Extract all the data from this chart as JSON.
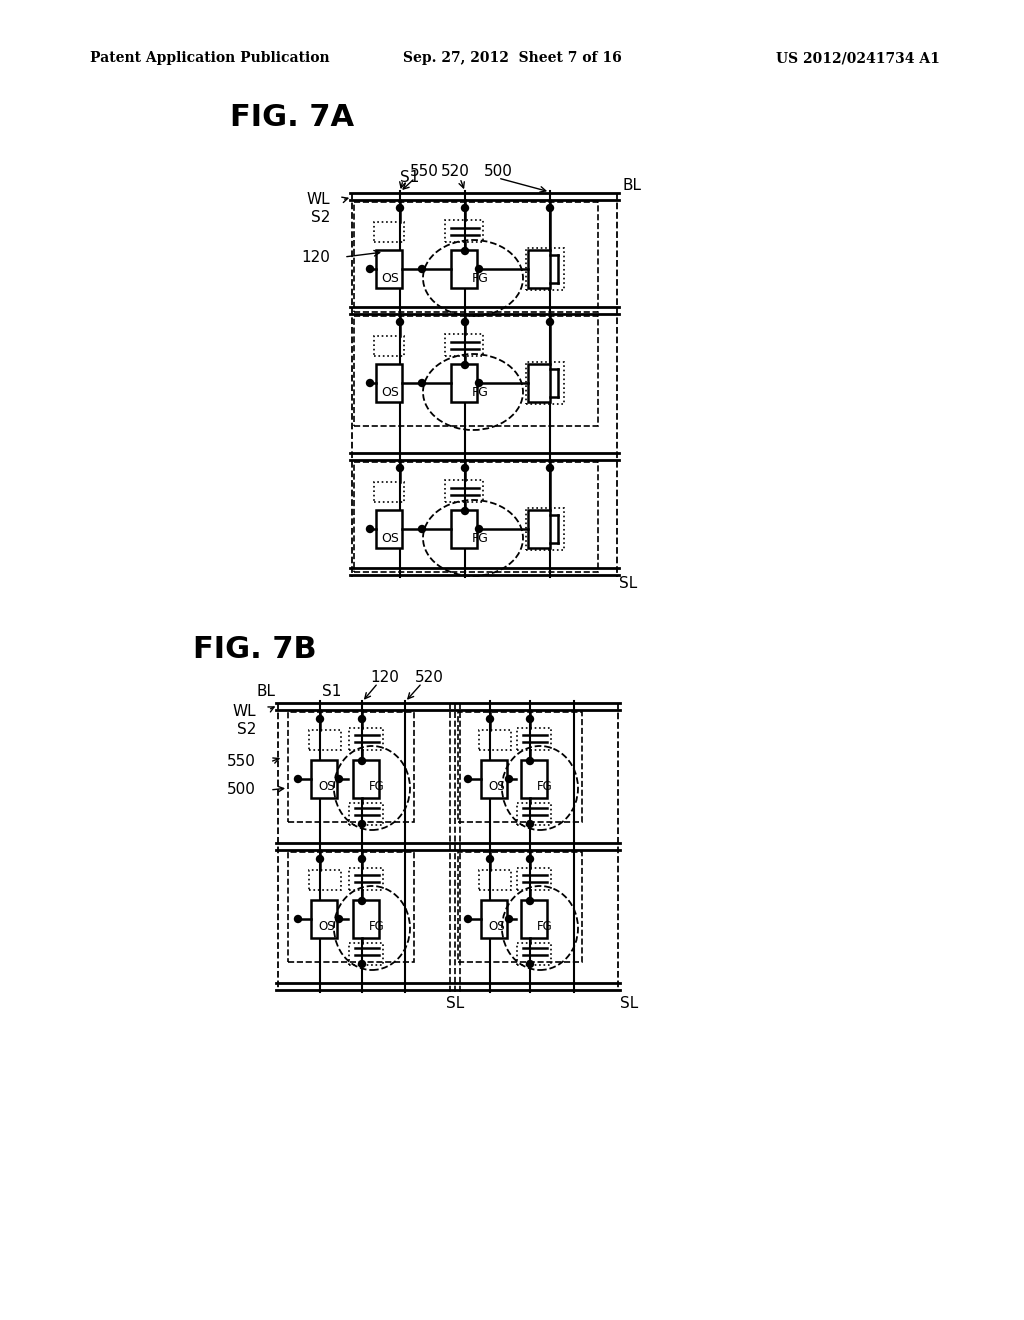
{
  "bg_color": "#ffffff",
  "header_left": "Patent Application Publication",
  "header_center": "Sep. 27, 2012  Sheet 7 of 16",
  "header_right": "US 2012/0241734 A1",
  "fig7a_label": "FIG. 7A",
  "fig7b_label": "FIG. 7B"
}
